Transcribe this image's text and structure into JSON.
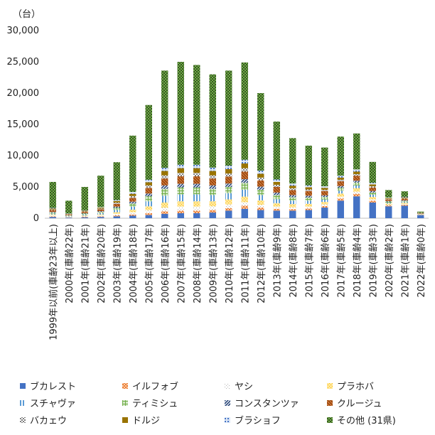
{
  "chart_data": {
    "type": "bar",
    "stacked": true,
    "unit_label": "（台）",
    "ylim": [
      0,
      30000
    ],
    "yticks": [
      0,
      5000,
      10000,
      15000,
      20000,
      25000,
      30000
    ],
    "ytick_labels": [
      "0",
      "5,000",
      "10,000",
      "15,000",
      "20,000",
      "25,000",
      "30,000"
    ],
    "grid": false,
    "legend_position": "bottom",
    "categories": [
      "1999年以前(車齢23年以上)",
      "2000年(車齢22年)",
      "2001年(車齢21年)",
      "2002年(車齢20年)",
      "2003年(車齢19年)",
      "2004年(車齢18年)",
      "2005年(車齢17年)",
      "2006年(車齢16年)",
      "2007年(車齢15年)",
      "2008年(車齢14年)",
      "2009年(車齢13年)",
      "2010年(車齢12年)",
      "2011年(車齢11年)",
      "2012年(車齢10年)",
      "2013年(車齢9年)",
      "2014年(車齢8年)",
      "2015年(車齢7年)",
      "2016年(車齢6年)",
      "2017年(車齢5年)",
      "2018年(車齢4年)",
      "2019年(車齢3年)",
      "2020年(車齢2年)",
      "2021年(車齢1年)",
      "2022年(車齢0年)"
    ],
    "series": [
      {
        "name": "ブカレスト",
        "color": "#4472c4",
        "pattern": "solid",
        "values": [
          200,
          100,
          150,
          200,
          300,
          400,
          500,
          700,
          800,
          800,
          900,
          1200,
          1500,
          1300,
          1200,
          1200,
          1300,
          1700,
          2800,
          3500,
          2500,
          1900,
          2000,
          500
        ]
      },
      {
        "name": "イルフォブ",
        "color": "#ed7d31",
        "pattern": "dots",
        "values": [
          100,
          50,
          80,
          100,
          150,
          200,
          300,
          400,
          400,
          400,
          400,
          400,
          500,
          400,
          300,
          250,
          250,
          250,
          350,
          400,
          300,
          150,
          150,
          50
        ]
      },
      {
        "name": "ヤシ",
        "color": "#b4b4b4",
        "pattern": "sparse",
        "values": [
          150,
          60,
          100,
          150,
          250,
          350,
          500,
          600,
          650,
          650,
          600,
          600,
          550,
          450,
          350,
          300,
          300,
          250,
          300,
          350,
          200,
          100,
          100,
          30
        ]
      },
      {
        "name": "プラホバ",
        "color": "#ffc000",
        "pattern": "dense",
        "values": [
          150,
          60,
          100,
          150,
          250,
          400,
          600,
          800,
          850,
          850,
          800,
          800,
          900,
          700,
          550,
          500,
          450,
          400,
          500,
          550,
          400,
          200,
          200,
          50
        ]
      },
      {
        "name": "スチャヴァ",
        "color": "#5b9bd5",
        "pattern": "vlines",
        "values": [
          150,
          80,
          150,
          200,
          350,
          500,
          800,
          1100,
          1100,
          1100,
          1000,
          1000,
          1100,
          850,
          650,
          550,
          500,
          400,
          450,
          450,
          350,
          150,
          150,
          40
        ]
      },
      {
        "name": "ティミシュ",
        "color": "#70ad47",
        "pattern": "grid",
        "values": [
          150,
          80,
          150,
          200,
          350,
          500,
          800,
          1100,
          1100,
          1100,
          1000,
          1000,
          1100,
          850,
          650,
          550,
          500,
          400,
          450,
          450,
          350,
          150,
          150,
          40
        ]
      },
      {
        "name": "コンスタンツァ",
        "color": "#264478",
        "pattern": "diag",
        "values": [
          100,
          50,
          80,
          120,
          200,
          300,
          450,
          550,
          600,
          600,
          550,
          550,
          600,
          500,
          400,
          350,
          300,
          250,
          300,
          300,
          250,
          100,
          100,
          30
        ]
      },
      {
        "name": "クルージュ",
        "color": "#9e480e",
        "pattern": "hatch",
        "values": [
          300,
          120,
          200,
          300,
          450,
          600,
          900,
          1100,
          1200,
          1200,
          1100,
          1100,
          1200,
          1000,
          900,
          800,
          750,
          700,
          750,
          800,
          550,
          250,
          250,
          60
        ]
      },
      {
        "name": "バカェウ",
        "color": "#7f7f7f",
        "pattern": "check",
        "values": [
          100,
          50,
          80,
          120,
          200,
          300,
          400,
          500,
          550,
          550,
          500,
          500,
          550,
          450,
          350,
          300,
          250,
          200,
          250,
          250,
          200,
          80,
          80,
          20
        ]
      },
      {
        "name": "ドルジ",
        "color": "#997300",
        "pattern": "solid",
        "values": [
          150,
          60,
          100,
          150,
          250,
          350,
          500,
          700,
          750,
          750,
          700,
          700,
          750,
          600,
          450,
          400,
          350,
          300,
          350,
          400,
          300,
          120,
          120,
          30
        ]
      },
      {
        "name": "ブラショフ",
        "color": "#4472c4",
        "pattern": "bigdots",
        "values": [
          100,
          50,
          80,
          100,
          150,
          300,
          400,
          500,
          550,
          550,
          550,
          550,
          600,
          500,
          400,
          350,
          300,
          250,
          300,
          350,
          250,
          100,
          100,
          30
        ]
      },
      {
        "name": "その他 (31県)",
        "color": "#70ad47",
        "pattern": "darkcheck",
        "values": [
          4150,
          2040,
          3730,
          5010,
          6050,
          9000,
          11950,
          15550,
          16450,
          15950,
          14900,
          15200,
          15550,
          12400,
          9250,
          7250,
          6350,
          6200,
          6250,
          5750,
          3350,
          1200,
          900,
          170
        ]
      }
    ]
  }
}
